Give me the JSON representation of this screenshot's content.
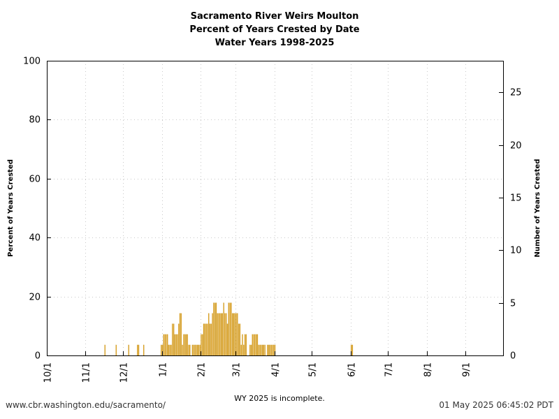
{
  "chart_data": {
    "type": "bar",
    "title": [
      "Sacramento River Weirs Moulton",
      "Percent of Years Crested by Date",
      "Water Years 1998-2025"
    ],
    "ylabel": "Percent of Years Crested",
    "y2label": "Number of Years Crested",
    "xlabel": "",
    "ylim": [
      0,
      100
    ],
    "y2lim": [
      0,
      28
    ],
    "yticks": [
      0,
      20,
      40,
      60,
      80,
      100
    ],
    "y2ticks": [
      0,
      5,
      10,
      15,
      20,
      25
    ],
    "xticks": [
      {
        "label": "10/1",
        "day": 0
      },
      {
        "label": "11/1",
        "day": 31
      },
      {
        "label": "12/1",
        "day": 61
      },
      {
        "label": "1/1",
        "day": 92
      },
      {
        "label": "2/1",
        "day": 123
      },
      {
        "label": "3/1",
        "day": 151
      },
      {
        "label": "4/1",
        "day": 182
      },
      {
        "label": "5/1",
        "day": 212
      },
      {
        "label": "6/1",
        "day": 243
      },
      {
        "label": "7/1",
        "day": 273
      },
      {
        "label": "8/1",
        "day": 304
      },
      {
        "label": "9/1",
        "day": 335
      }
    ],
    "xlim": [
      0,
      365
    ],
    "grid": true,
    "bar_color": "#e8a317",
    "bar_edge_color": "#b8860b",
    "series": [
      {
        "unit": "number of years crested",
        "points": [
          {
            "day": 46,
            "count": 1
          },
          {
            "day": 55,
            "count": 1
          },
          {
            "day": 65,
            "count": 1
          },
          {
            "day": 72,
            "count": 1
          },
          {
            "day": 73,
            "count": 1
          },
          {
            "day": 77,
            "count": 1
          },
          {
            "day": 91,
            "count": 1
          },
          {
            "day": 92,
            "count": 1
          },
          {
            "day": 93,
            "count": 2
          },
          {
            "day": 94,
            "count": 2
          },
          {
            "day": 95,
            "count": 2
          },
          {
            "day": 96,
            "count": 2
          },
          {
            "day": 97,
            "count": 1
          },
          {
            "day": 98,
            "count": 1
          },
          {
            "day": 99,
            "count": 1
          },
          {
            "day": 100,
            "count": 3
          },
          {
            "day": 101,
            "count": 3
          },
          {
            "day": 102,
            "count": 2
          },
          {
            "day": 103,
            "count": 2
          },
          {
            "day": 104,
            "count": 2
          },
          {
            "day": 105,
            "count": 3
          },
          {
            "day": 106,
            "count": 4
          },
          {
            "day": 107,
            "count": 4
          },
          {
            "day": 108,
            "count": 1
          },
          {
            "day": 109,
            "count": 2
          },
          {
            "day": 110,
            "count": 2
          },
          {
            "day": 111,
            "count": 2
          },
          {
            "day": 112,
            "count": 2
          },
          {
            "day": 113,
            "count": 1
          },
          {
            "day": 114,
            "count": 1
          },
          {
            "day": 116,
            "count": 1
          },
          {
            "day": 117,
            "count": 1
          },
          {
            "day": 118,
            "count": 1
          },
          {
            "day": 119,
            "count": 1
          },
          {
            "day": 120,
            "count": 1
          },
          {
            "day": 121,
            "count": 1
          },
          {
            "day": 122,
            "count": 1
          },
          {
            "day": 123,
            "count": 2
          },
          {
            "day": 124,
            "count": 2
          },
          {
            "day": 125,
            "count": 3
          },
          {
            "day": 126,
            "count": 3
          },
          {
            "day": 127,
            "count": 3
          },
          {
            "day": 128,
            "count": 3
          },
          {
            "day": 129,
            "count": 4
          },
          {
            "day": 130,
            "count": 3
          },
          {
            "day": 131,
            "count": 3
          },
          {
            "day": 132,
            "count": 4
          },
          {
            "day": 133,
            "count": 5
          },
          {
            "day": 134,
            "count": 5
          },
          {
            "day": 135,
            "count": 5
          },
          {
            "day": 136,
            "count": 4
          },
          {
            "day": 137,
            "count": 4
          },
          {
            "day": 138,
            "count": 4
          },
          {
            "day": 139,
            "count": 4
          },
          {
            "day": 140,
            "count": 4
          },
          {
            "day": 141,
            "count": 5
          },
          {
            "day": 142,
            "count": 4
          },
          {
            "day": 143,
            "count": 4
          },
          {
            "day": 144,
            "count": 3
          },
          {
            "day": 145,
            "count": 5
          },
          {
            "day": 146,
            "count": 5
          },
          {
            "day": 147,
            "count": 5
          },
          {
            "day": 148,
            "count": 4
          },
          {
            "day": 149,
            "count": 4
          },
          {
            "day": 150,
            "count": 4
          },
          {
            "day": 151,
            "count": 4
          },
          {
            "day": 152,
            "count": 4
          },
          {
            "day": 153,
            "count": 3
          },
          {
            "day": 154,
            "count": 3
          },
          {
            "day": 155,
            "count": 1
          },
          {
            "day": 156,
            "count": 2
          },
          {
            "day": 157,
            "count": 1
          },
          {
            "day": 158,
            "count": 2
          },
          {
            "day": 159,
            "count": 2
          },
          {
            "day": 162,
            "count": 1
          },
          {
            "day": 163,
            "count": 1
          },
          {
            "day": 164,
            "count": 2
          },
          {
            "day": 165,
            "count": 2
          },
          {
            "day": 166,
            "count": 2
          },
          {
            "day": 167,
            "count": 2
          },
          {
            "day": 168,
            "count": 2
          },
          {
            "day": 169,
            "count": 1
          },
          {
            "day": 170,
            "count": 1
          },
          {
            "day": 171,
            "count": 1
          },
          {
            "day": 172,
            "count": 1
          },
          {
            "day": 173,
            "count": 1
          },
          {
            "day": 174,
            "count": 1
          },
          {
            "day": 176,
            "count": 1
          },
          {
            "day": 177,
            "count": 1
          },
          {
            "day": 178,
            "count": 1
          },
          {
            "day": 179,
            "count": 1
          },
          {
            "day": 180,
            "count": 1
          },
          {
            "day": 181,
            "count": 1
          },
          {
            "day": 182,
            "count": 1
          },
          {
            "day": 243,
            "count": 1
          },
          {
            "day": 244,
            "count": 1
          }
        ]
      }
    ]
  },
  "footer": {
    "url": "www.cbr.washington.edu/sacramento/",
    "note": "WY 2025 is incomplete.",
    "timestamp": "01 May 2025 06:45:02 PDT"
  }
}
